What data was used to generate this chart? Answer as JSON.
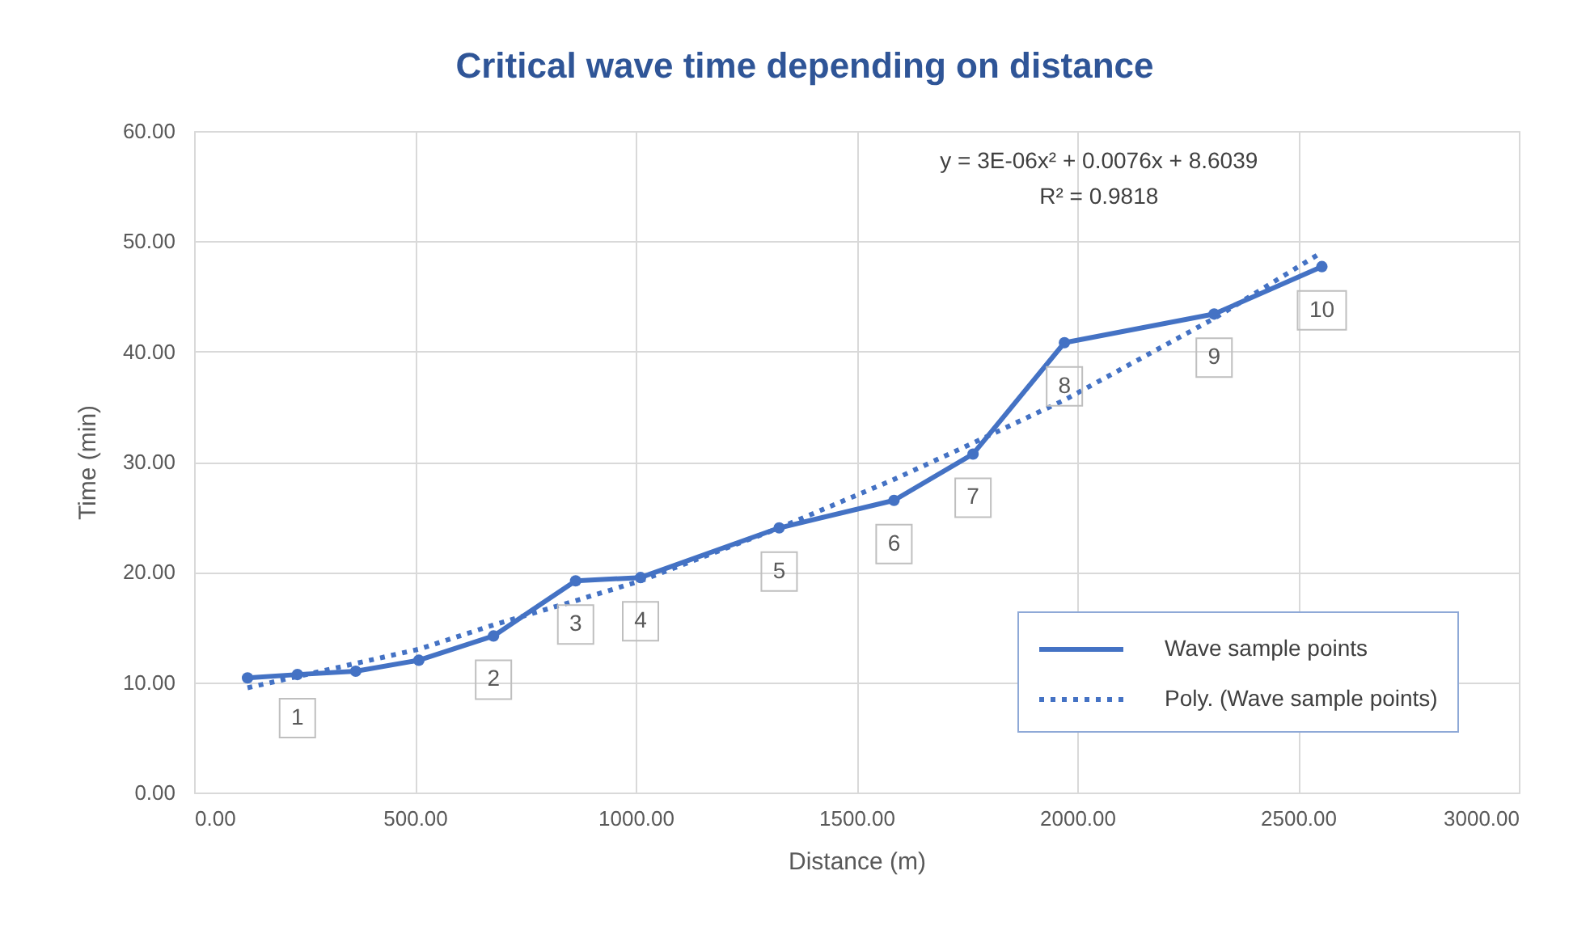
{
  "chart_data": {
    "type": "line",
    "title": "Critical wave time depending on distance",
    "xlabel": "Distance (m)",
    "ylabel": "Time (min)",
    "series": [
      {
        "name": "Wave sample points",
        "color": "#4472c4",
        "marker": "circle",
        "line_style": "solid",
        "x": [
          121,
          234,
          366,
          509,
          678,
          864,
          1011,
          1325,
          1585,
          1764,
          1971,
          2310,
          2554
        ],
        "values": [
          10.4,
          10.7,
          11.0,
          12.0,
          14.2,
          19.2,
          19.5,
          24.0,
          26.5,
          30.7,
          40.8,
          43.4,
          47.7
        ]
      },
      {
        "name": "Poly. (Wave sample points)",
        "color": "#4472c4",
        "marker": "none",
        "line_style": "dotted",
        "x": [
          121,
          509,
          678,
          864,
          1011,
          1325,
          1585,
          1764,
          1971,
          2310,
          2554
        ],
        "values": [
          9.5,
          13.0,
          15.2,
          17.4,
          19.2,
          24.0,
          28.4,
          31.7,
          35.6,
          43.0,
          49.0
        ]
      }
    ],
    "xlim": [
      0,
      3000
    ],
    "xticks": [
      {
        "value": 0,
        "label": "0.00"
      },
      {
        "value": 500,
        "label": "500.00"
      },
      {
        "value": 1000,
        "label": "1000.00"
      },
      {
        "value": 1500,
        "label": "1500.00"
      },
      {
        "value": 2000,
        "label": "2000.00"
      },
      {
        "value": 2500,
        "label": "2500.00"
      },
      {
        "value": 3000,
        "label": "3000.00"
      }
    ],
    "ylim": [
      0,
      60
    ],
    "yticks": [
      {
        "value": 0,
        "label": "0.00"
      },
      {
        "value": 10,
        "label": "10.00"
      },
      {
        "value": 20,
        "label": "20.00"
      },
      {
        "value": 30,
        "label": "30.00"
      },
      {
        "value": 40,
        "label": "40.00"
      },
      {
        "value": 50,
        "label": "50.00"
      },
      {
        "value": 60,
        "label": "60.00"
      }
    ],
    "grid": true,
    "legend": "bottom right",
    "annotations": [
      "y = 3E-06x² + 0.0076x + 8.6039",
      "R² = 0.9818",
      {
        "text": "1",
        "x": 234,
        "y": 10.7
      },
      {
        "text": "2",
        "x": 678,
        "y": 14.2
      },
      {
        "text": "3",
        "x": 864,
        "y": 19.2
      },
      {
        "text": "4",
        "x": 1011,
        "y": 19.5
      },
      {
        "text": "5",
        "x": 1325,
        "y": 24.0
      },
      {
        "text": "6",
        "x": 1585,
        "y": 26.5
      },
      {
        "text": "7",
        "x": 1764,
        "y": 30.7
      },
      {
        "text": "8",
        "x": 1971,
        "y": 40.8
      },
      {
        "text": "9",
        "x": 2310,
        "y": 43.4
      },
      {
        "text": "10",
        "x": 2554,
        "y": 47.7
      }
    ]
  }
}
